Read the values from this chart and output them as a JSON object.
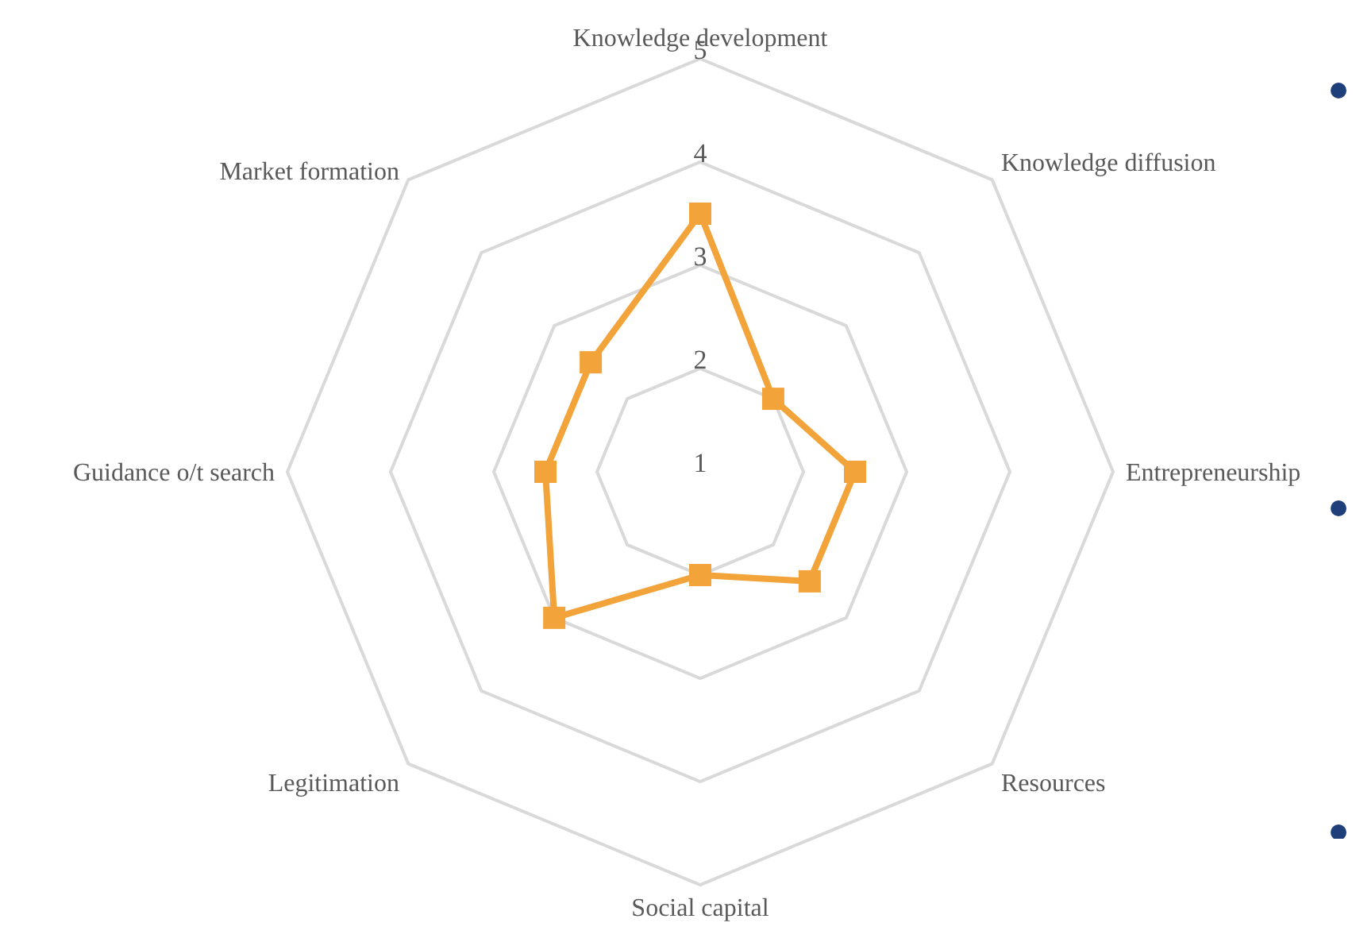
{
  "chart_data": {
    "type": "radar",
    "categories": [
      "Knowledge development",
      "Knowledge diffusion",
      "Entrepreneurship",
      "Resources",
      "Social capital",
      "Legitimation",
      "Guidance o/t search",
      "Market formation"
    ],
    "series": [
      {
        "color": "#f2a33a",
        "values": [
          3.5,
          2.0,
          2.5,
          2.5,
          2.0,
          3.0,
          2.5,
          2.5
        ]
      }
    ],
    "ylim": [
      1,
      5
    ],
    "yticks": [
      1,
      2,
      3,
      4,
      5
    ],
    "grid": true,
    "marker": "square",
    "line_style": "solid"
  }
}
